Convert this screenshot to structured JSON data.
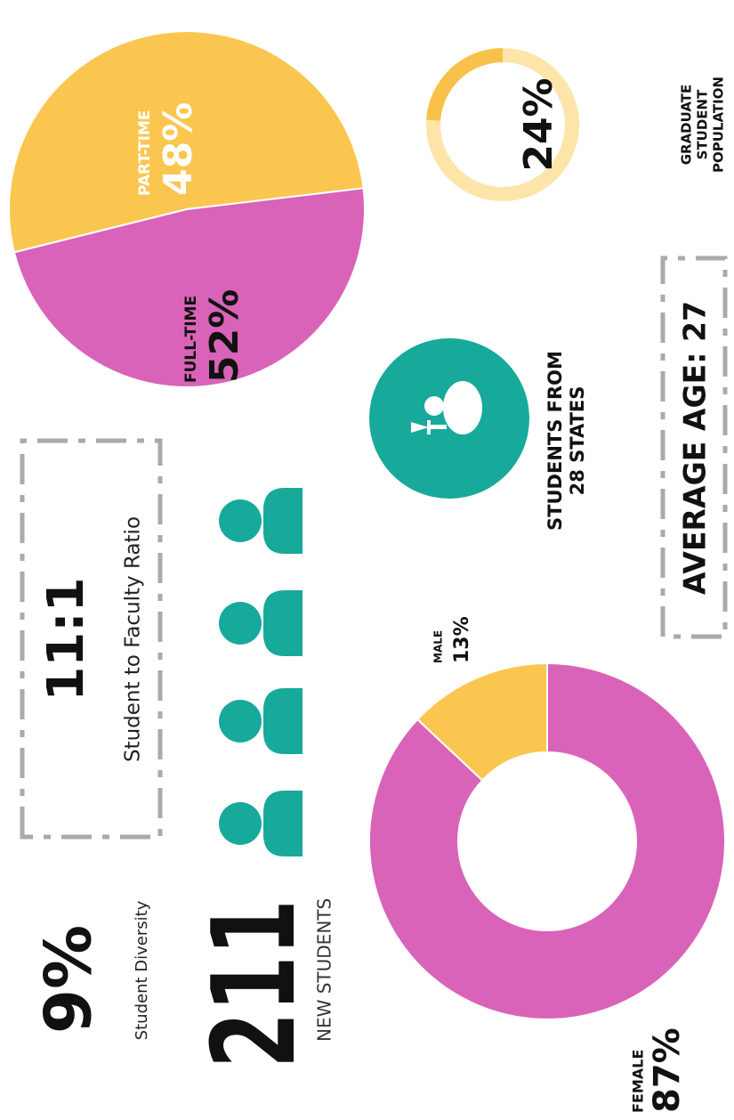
{
  "diversity": {
    "value": "9%",
    "label": "Student Diversity"
  },
  "new_students": {
    "value": "211",
    "label": "NEW STUDENTS"
  },
  "ratio": {
    "value": "11:1",
    "label": "Student to Faculty Ratio"
  },
  "enrollment": {
    "type": "pie",
    "categories": [
      "FULL-TIME",
      "PART-TIME"
    ],
    "values": [
      52,
      48
    ],
    "value_labels": [
      "52%",
      "48%"
    ],
    "colors": [
      "#fbc64f",
      "#d963b9"
    ]
  },
  "graduate": {
    "type": "donut",
    "values": [
      24
    ],
    "value_labels": [
      "24%"
    ],
    "color": "#f8c24a",
    "track_color": "#fde5aa",
    "label_lines": [
      "GRADUATE",
      "STUDENT",
      "POPULATION"
    ]
  },
  "states": {
    "lines": [
      "STUDENTS FROM",
      "28 STATES"
    ],
    "color": "#17a99a"
  },
  "average_age": "AVERAGE AGE: 27",
  "gender": {
    "type": "donut",
    "categories": [
      "MALE",
      "FEMALE"
    ],
    "values": [
      13,
      87
    ],
    "value_labels": [
      "13%",
      "87%"
    ],
    "colors": [
      "#fbc64f",
      "#d963b9"
    ]
  }
}
